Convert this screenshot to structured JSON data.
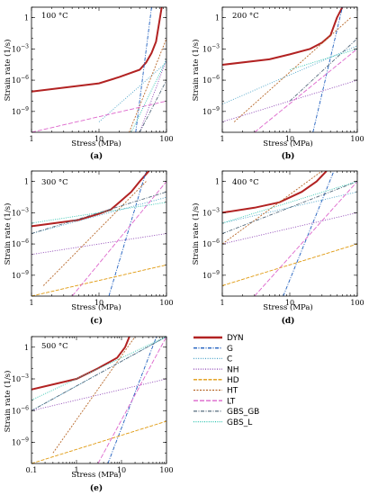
{
  "legend": [
    {
      "key": "DYN",
      "name": "DYN",
      "color": "#b22222",
      "width": 2.0,
      "dash": ""
    },
    {
      "key": "G",
      "name": "G",
      "color": "#1f5fbf",
      "width": 0.9,
      "dash": "4,1.5,1,1.5"
    },
    {
      "key": "C",
      "name": "C",
      "color": "#4aa3c8",
      "width": 0.9,
      "dash": "1,1.6"
    },
    {
      "key": "NH",
      "name": "NH",
      "color": "#8a3fb3",
      "width": 0.9,
      "dash": "1,1.6"
    },
    {
      "key": "HD",
      "name": "HD",
      "color": "#e09a10",
      "width": 0.9,
      "dash": "4,1.5"
    },
    {
      "key": "HT",
      "name": "HT",
      "color": "#b8682a",
      "width": 0.9,
      "dash": "2,1.5"
    },
    {
      "key": "LT",
      "name": "LT",
      "color": "#dd66cc",
      "width": 0.9,
      "dash": "5,2"
    },
    {
      "key": "GBS_GB",
      "name": "GBS_GB",
      "color": "#556b7d",
      "width": 0.9,
      "dash": "4,1.5,1,1.5"
    },
    {
      "key": "GBS_L",
      "name": "GBS_L",
      "color": "#2ec4b0",
      "width": 0.9,
      "dash": "1,1.4"
    }
  ],
  "chart_data": [
    {
      "type": "line",
      "panel_label": "(a)",
      "title": "100 °C",
      "xlabel": "Stress (MPa)",
      "ylabel": "Strain rate (1/s)",
      "xscale": "log",
      "yscale": "log",
      "xlim": [
        1,
        100
      ],
      "ylim": [
        1e-11,
        10
      ],
      "xticks": [
        "1",
        "10",
        "100"
      ],
      "yticks": [
        "10^-9",
        "10^-6",
        "10^-3",
        "1"
      ],
      "series": [
        {
          "name": "DYN",
          "x": [
            1,
            10,
            20,
            40,
            50,
            60,
            70,
            85
          ],
          "y": [
            8e-08,
            5e-07,
            2e-06,
            1e-05,
            5e-05,
            0.0004,
            0.005,
            10
          ]
        },
        {
          "name": "G",
          "x": [
            35,
            60
          ],
          "y": [
            1e-11,
            10
          ]
        },
        {
          "name": "C",
          "x": [
            10,
            100
          ],
          "y": [
            1e-10,
            5e-05
          ]
        },
        {
          "name": "NH",
          "x": [
            40,
            100
          ],
          "y": [
            1e-11,
            0.0001
          ]
        },
        {
          "name": "HT",
          "x": [
            28,
            100
          ],
          "y": [
            1e-11,
            0.01
          ]
        },
        {
          "name": "LT",
          "x": [
            1,
            100
          ],
          "y": [
            1e-11,
            1e-08
          ]
        },
        {
          "name": "GBS_GB",
          "x": [
            40,
            100
          ],
          "y": [
            1e-11,
            1e-06
          ]
        },
        {
          "name": "GBS_L",
          "x": [
            30,
            100
          ],
          "y": [
            1e-11,
            0.0001
          ]
        }
      ]
    },
    {
      "type": "line",
      "panel_label": "(b)",
      "title": "200 °C",
      "xlabel": "Stress (MPa)",
      "ylabel": "Strain rate (1/s)",
      "xscale": "log",
      "yscale": "log",
      "xlim": [
        1,
        100
      ],
      "ylim": [
        1e-11,
        10
      ],
      "xticks": [
        "1",
        "10",
        "100"
      ],
      "yticks": [
        "10^-9",
        "10^-6",
        "10^-3",
        "1"
      ],
      "series": [
        {
          "name": "DYN",
          "x": [
            1,
            5,
            10,
            20,
            30,
            40,
            50,
            60
          ],
          "y": [
            3e-05,
            0.0001,
            0.0003,
            0.001,
            0.004,
            0.02,
            1,
            10
          ]
        },
        {
          "name": "G",
          "x": [
            22,
            60
          ],
          "y": [
            1e-11,
            10
          ]
        },
        {
          "name": "C",
          "x": [
            1,
            100
          ],
          "y": [
            5e-09,
            0.002
          ]
        },
        {
          "name": "NH",
          "x": [
            1,
            100
          ],
          "y": [
            1e-10,
            1e-06
          ]
        },
        {
          "name": "HT",
          "x": [
            1.5,
            80
          ],
          "y": [
            1e-10,
            1
          ]
        },
        {
          "name": "LT",
          "x": [
            3,
            100
          ],
          "y": [
            1e-11,
            0.001
          ]
        },
        {
          "name": "GBS_GB",
          "x": [
            10,
            100
          ],
          "y": [
            1e-08,
            0.01
          ]
        },
        {
          "name": "GBS_L",
          "x": [
            10,
            100
          ],
          "y": [
            1e-05,
            0.001
          ]
        }
      ]
    },
    {
      "type": "line",
      "panel_label": "(c)",
      "title": "300 °C",
      "xlabel": "Stress (MPa)",
      "ylabel": "Strain rate (1/s)",
      "xscale": "log",
      "yscale": "log",
      "xlim": [
        1,
        100
      ],
      "ylim": [
        1e-11,
        10
      ],
      "xticks": [
        "1",
        "10",
        "100"
      ],
      "yticks": [
        "10^-9",
        "10^-6",
        "10^-3",
        "1"
      ],
      "series": [
        {
          "name": "DYN",
          "x": [
            1,
            5,
            10,
            15,
            20,
            30,
            40,
            55
          ],
          "y": [
            5e-05,
            0.0002,
            0.0008,
            0.002,
            0.01,
            0.1,
            1,
            10
          ]
        },
        {
          "name": "G",
          "x": [
            14,
            50
          ],
          "y": [
            1e-11,
            10
          ]
        },
        {
          "name": "C",
          "x": [
            1,
            100
          ],
          "y": [
            1e-05,
            0.03
          ]
        },
        {
          "name": "NH",
          "x": [
            1,
            100
          ],
          "y": [
            1e-07,
            1e-05
          ]
        },
        {
          "name": "HD",
          "x": [
            1,
            100
          ],
          "y": [
            1e-11,
            1e-08
          ]
        },
        {
          "name": "HT",
          "x": [
            1.5,
            50
          ],
          "y": [
            1e-10,
            1
          ]
        },
        {
          "name": "LT",
          "x": [
            4,
            100
          ],
          "y": [
            1e-11,
            1
          ]
        },
        {
          "name": "GBS_GB",
          "x": [
            1,
            100
          ],
          "y": [
            1e-05,
            0.1
          ]
        },
        {
          "name": "GBS_L",
          "x": [
            1,
            100
          ],
          "y": [
            0.0001,
            0.01
          ]
        }
      ]
    },
    {
      "type": "line",
      "panel_label": "(d)",
      "title": "400 °C",
      "xlabel": "Stress (MPa)",
      "ylabel": "Strain rate (1/s)",
      "xscale": "log",
      "yscale": "log",
      "xlim": [
        1,
        100
      ],
      "ylim": [
        1e-11,
        10
      ],
      "xticks": [
        "1",
        "10",
        "100"
      ],
      "yticks": [
        "10^-9",
        "10^-6",
        "10^-3",
        "1"
      ],
      "series": [
        {
          "name": "DYN",
          "x": [
            1,
            3,
            7,
            15,
            25,
            35
          ],
          "y": [
            0.001,
            0.003,
            0.01,
            0.1,
            1,
            10
          ]
        },
        {
          "name": "G",
          "x": [
            8,
            45
          ],
          "y": [
            1e-11,
            10
          ]
        },
        {
          "name": "C",
          "x": [
            1,
            100
          ],
          "y": [
            0.0001,
            0.1
          ]
        },
        {
          "name": "NH",
          "x": [
            1,
            100
          ],
          "y": [
            1e-06,
            0.001
          ]
        },
        {
          "name": "HD",
          "x": [
            1,
            100
          ],
          "y": [
            1e-10,
            1e-06
          ]
        },
        {
          "name": "HT",
          "x": [
            1,
            30
          ],
          "y": [
            1e-06,
            10
          ]
        },
        {
          "name": "LT",
          "x": [
            3,
            100
          ],
          "y": [
            1e-11,
            1
          ]
        },
        {
          "name": "GBS_GB",
          "x": [
            1,
            100
          ],
          "y": [
            1e-05,
            1
          ]
        },
        {
          "name": "GBS_L",
          "x": [
            1,
            100
          ],
          "y": [
            0.0001,
            1
          ]
        }
      ]
    },
    {
      "type": "line",
      "panel_label": "(e)",
      "title": "500 °C",
      "xlabel": "Stress (MPa)",
      "ylabel": "Strain rate (1/s)",
      "xscale": "log",
      "yscale": "log",
      "xlim": [
        0.1,
        100
      ],
      "ylim": [
        1e-11,
        10
      ],
      "xticks": [
        "0.1",
        "1",
        "10",
        "100"
      ],
      "yticks": [
        "10^-9",
        "10^-6",
        "10^-3",
        "1"
      ],
      "series": [
        {
          "name": "DYN",
          "x": [
            0.1,
            1,
            3,
            8,
            12,
            15
          ],
          "y": [
            0.0001,
            0.001,
            0.01,
            0.1,
            1,
            10
          ]
        },
        {
          "name": "G",
          "x": [
            5,
            60
          ],
          "y": [
            1e-11,
            10
          ]
        },
        {
          "name": "C",
          "x": [
            0.1,
            100
          ],
          "y": [
            1e-06,
            10
          ]
        },
        {
          "name": "NH",
          "x": [
            0.1,
            100
          ],
          "y": [
            1e-06,
            0.001
          ]
        },
        {
          "name": "HD",
          "x": [
            0.1,
            100
          ],
          "y": [
            1e-11,
            1e-07
          ]
        },
        {
          "name": "HT",
          "x": [
            0.3,
            20
          ],
          "y": [
            1e-10,
            10
          ]
        },
        {
          "name": "LT",
          "x": [
            3,
            100
          ],
          "y": [
            1e-11,
            10
          ]
        },
        {
          "name": "GBS_GB",
          "x": [
            0.1,
            100
          ],
          "y": [
            1e-06,
            10
          ]
        },
        {
          "name": "GBS_L",
          "x": [
            0.1,
            100
          ],
          "y": [
            1e-05,
            10
          ]
        }
      ]
    }
  ]
}
